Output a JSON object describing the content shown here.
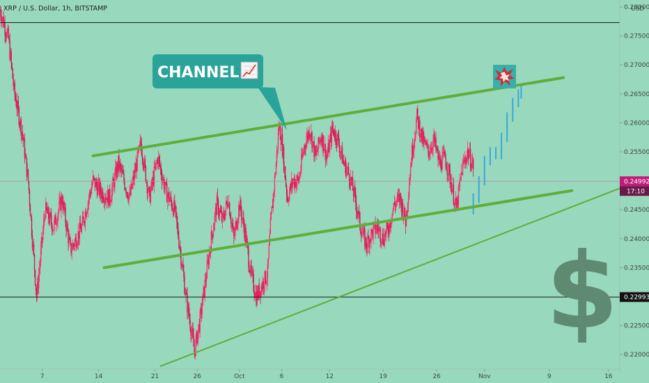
{
  "header": {
    "title": "XRP / U.S. Dollar, 1h, BITSTAMP",
    "currency": "USD"
  },
  "colors": {
    "background": "#98d8bd",
    "candle_up": "#ff2d6e",
    "candle_down": "#c81e50",
    "channel": "#5fae3a",
    "projection": "#3aa8d8",
    "callout_bg": "#2aa39a",
    "dollar": "#5e8a72",
    "current_price_tag": "#c01c7a",
    "level_tag": "#111111"
  },
  "annotations": {
    "callout_text": "CHANNEL",
    "callout_icon": "chart-increasing-icon",
    "burst_icon": "collision-icon",
    "dollar_icon": "dollar-sign-icon"
  },
  "chart_data": {
    "type": "candlestick",
    "y_range": [
      0.2175,
      0.2812
    ],
    "y_ticks": [
      "0.28000",
      "0.27500",
      "0.27000",
      "0.26500",
      "0.26000",
      "0.25500",
      "0.25000",
      "0.24500",
      "0.24000",
      "0.23500",
      "0.23000",
      "0.22500",
      "0.22000"
    ],
    "x_ticks": [
      "7",
      "14",
      "21",
      "26",
      "Oct",
      "6",
      "12",
      "19",
      "26",
      "Nov",
      "9",
      "16"
    ],
    "current_price": "0.24992",
    "countdown": "17:10",
    "levels": [
      {
        "price": 0.2773
      },
      {
        "price": 0.22993,
        "label": "0.22993"
      }
    ],
    "price_path": [
      [
        0,
        0.2795
      ],
      [
        3,
        0.2745
      ],
      [
        5,
        0.2655
      ],
      [
        8,
        0.258
      ],
      [
        10,
        0.25
      ],
      [
        13,
        0.23
      ],
      [
        16,
        0.245
      ],
      [
        19,
        0.242
      ],
      [
        22,
        0.247
      ],
      [
        25,
        0.238
      ],
      [
        29,
        0.242
      ],
      [
        33,
        0.25
      ],
      [
        36,
        0.248
      ],
      [
        39,
        0.247
      ],
      [
        42,
        0.253
      ],
      [
        46,
        0.247
      ],
      [
        50,
        0.2565
      ],
      [
        53,
        0.247
      ],
      [
        56,
        0.254
      ],
      [
        59,
        0.248
      ],
      [
        62,
        0.245
      ],
      [
        64,
        0.238
      ],
      [
        66,
        0.23
      ],
      [
        68,
        0.224
      ],
      [
        69,
        0.2205
      ],
      [
        71,
        0.226
      ],
      [
        73,
        0.233
      ],
      [
        75,
        0.24
      ],
      [
        77,
        0.246
      ],
      [
        79,
        0.243
      ],
      [
        81,
        0.247
      ],
      [
        83,
        0.24
      ],
      [
        85,
        0.246
      ],
      [
        87,
        0.241
      ],
      [
        89,
        0.234
      ],
      [
        91,
        0.23
      ],
      [
        93,
        0.232
      ],
      [
        95,
        0.234
      ],
      [
        96,
        0.242
      ],
      [
        98,
        0.253
      ],
      [
        99,
        0.2595
      ],
      [
        100,
        0.257
      ],
      [
        102,
        0.247
      ],
      [
        104,
        0.25
      ],
      [
        106,
        0.25
      ],
      [
        108,
        0.256
      ],
      [
        110,
        0.259
      ],
      [
        112,
        0.254
      ],
      [
        114,
        0.258
      ],
      [
        116,
        0.254
      ],
      [
        118,
        0.259
      ],
      [
        120,
        0.257
      ],
      [
        122,
        0.253
      ],
      [
        124,
        0.251
      ],
      [
        126,
        0.247
      ],
      [
        128,
        0.242
      ],
      [
        130,
        0.239
      ],
      [
        132,
        0.241
      ],
      [
        134,
        0.242
      ],
      [
        136,
        0.24
      ],
      [
        138,
        0.242
      ],
      [
        140,
        0.246
      ],
      [
        142,
        0.247
      ],
      [
        144,
        0.243
      ],
      [
        146,
        0.254
      ],
      [
        148,
        0.261
      ],
      [
        150,
        0.257
      ],
      [
        152,
        0.255
      ],
      [
        154,
        0.257
      ],
      [
        156,
        0.253
      ],
      [
        158,
        0.254
      ],
      [
        160,
        0.25
      ],
      [
        162,
        0.245
      ],
      [
        164,
        0.252
      ],
      [
        166,
        0.255
      ],
      [
        168,
        0.2525
      ]
    ],
    "projection_path": [
      [
        168,
        0.247
      ],
      [
        170,
        0.25
      ],
      [
        172,
        0.2535
      ],
      [
        174,
        0.255
      ],
      [
        176,
        0.2545
      ],
      [
        178,
        0.2575
      ],
      [
        180,
        0.261
      ],
      [
        182,
        0.2635
      ],
      [
        184,
        0.265
      ],
      [
        185,
        0.266
      ]
    ],
    "channel_lines": [
      {
        "from": [
          33,
          0.2543
        ],
        "to": [
          200,
          0.2678
        ]
      },
      {
        "from": [
          37,
          0.235
        ],
        "to": [
          203,
          0.2483
        ]
      }
    ],
    "support_line": {
      "from": [
        57,
        0.218
      ],
      "to": [
        220,
        0.2487
      ]
    },
    "x_index_range": [
      0,
      220
    ],
    "x_tick_index": [
      15,
      35,
      55,
      70,
      85,
      100,
      117,
      136,
      155,
      172,
      195,
      216
    ]
  }
}
